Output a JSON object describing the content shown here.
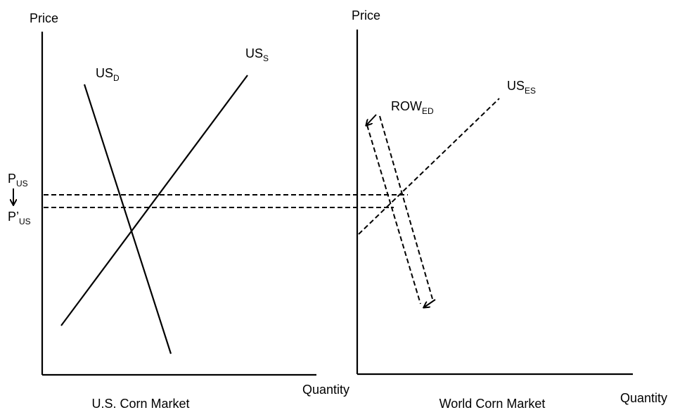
{
  "left_panel": {
    "y_axis_label": "Price",
    "x_axis_label": "Quantity",
    "title": "U.S. Corn Market",
    "demand_label": {
      "main": "US",
      "sub": "D"
    },
    "supply_label": {
      "main": "US",
      "sub": "S"
    },
    "price_high_label": {
      "main": "P",
      "sub": "US"
    },
    "price_low_label": {
      "main": "P’",
      "sub": "US"
    }
  },
  "right_panel": {
    "y_axis_label": "Price",
    "x_axis_label": "Quantity",
    "title": "World Corn Market",
    "excess_demand_label": {
      "main": "ROW",
      "sub": "ED"
    },
    "excess_supply_label": {
      "main": "US",
      "sub": "ES"
    }
  }
}
